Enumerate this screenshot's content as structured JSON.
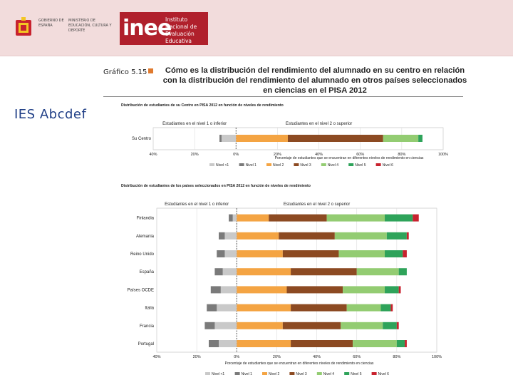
{
  "header": {
    "gov_label": "GOBIERNO DE ESPAÑA",
    "ministry_label": "MINISTERIO DE EDUCACIÓN, CULTURA Y DEPORTE",
    "inee_logo_text": "inee",
    "inee_name": "Instituto Nacional de Evaluación Educativa"
  },
  "side_label": "IES Abcdef",
  "figure": {
    "number": "Gráfico 5.15",
    "title": "Cómo es la distribución del rendimiento del alumnado en su centro en relación con la distribución del rendimiento del alumnado en otros países seleccionados en ciencias en el PISA 2012"
  },
  "colors": {
    "Nivel <1": "#c9c9c9",
    "Nivel 1": "#7a7a7a",
    "Nivel 2": "#f4a443",
    "Nivel 3": "#8c4a22",
    "Nivel 4": "#93cc72",
    "Nivel 5": "#2ea35a",
    "Nivel 6": "#c8222e"
  },
  "chart_data": [
    {
      "type": "bar",
      "stacked": true,
      "diverging": true,
      "title": "Distribución de estudiantes de su Centro en PISA 2012 en función de niveles de rendimiento",
      "left_header": "Estudiantes en el nivel 1 o inferior",
      "right_header": "Estudiantes en el nivel 2 o superior",
      "xlabel": "Porcentaje de estudiantes que se encuentran en diferentes niveles de rendimiento en ciencias",
      "xlim": [
        -40,
        100
      ],
      "ticks": [
        -40,
        -20,
        0,
        20,
        40,
        60,
        80,
        100
      ],
      "tick_labels": [
        "40%",
        "20%",
        "0%",
        "20%",
        "40%",
        "60%",
        "80%",
        "100%"
      ],
      "categories": [
        "Su Centro"
      ],
      "series": [
        {
          "name": "Nivel <1",
          "values": [
            -7
          ]
        },
        {
          "name": "Nivel 1",
          "values": [
            -1
          ]
        },
        {
          "name": "Nivel 2",
          "values": [
            25
          ]
        },
        {
          "name": "Nivel 3",
          "values": [
            46
          ]
        },
        {
          "name": "Nivel 4",
          "values": [
            17
          ]
        },
        {
          "name": "Nivel 5",
          "values": [
            2
          ]
        },
        {
          "name": "Nivel 6",
          "values": [
            0
          ]
        }
      ]
    },
    {
      "type": "bar",
      "stacked": true,
      "diverging": true,
      "title": "Distribución de estudiantes de los países seleccionados en PISA 2012 en función de niveles de rendimiento",
      "left_header": "Estudiantes en el nivel 1 o inferior",
      "right_header": "Estudiantes en el nivel 2 o superior",
      "xlabel": "Porcentaje de estudiantes que se encuentran en diferentes niveles de rendimiento en ciencias",
      "xlim": [
        -40,
        100
      ],
      "ticks": [
        -40,
        -20,
        0,
        20,
        40,
        60,
        80,
        100
      ],
      "tick_labels": [
        "40%",
        "20%",
        "0%",
        "20%",
        "40%",
        "60%",
        "80%",
        "100%"
      ],
      "categories": [
        "Finlandia",
        "Alemania",
        "Reino Unido",
        "España",
        "Países OCDE",
        "Italia",
        "Francia",
        "Portugal"
      ],
      "series": [
        {
          "name": "Nivel <1",
          "values": [
            -2,
            -6,
            -6,
            -7,
            -8,
            -10,
            -11,
            -9
          ]
        },
        {
          "name": "Nivel 1",
          "values": [
            -2,
            -3,
            -4,
            -4,
            -5,
            -5,
            -5,
            -5
          ]
        },
        {
          "name": "Nivel 2",
          "values": [
            16,
            21,
            23,
            27,
            25,
            27,
            23,
            27
          ]
        },
        {
          "name": "Nivel 3",
          "values": [
            29,
            28,
            28,
            33,
            28,
            28,
            29,
            31
          ]
        },
        {
          "name": "Nivel 4",
          "values": [
            29,
            26,
            23,
            21,
            21,
            17,
            21,
            22
          ]
        },
        {
          "name": "Nivel 5",
          "values": [
            14,
            10,
            9,
            4,
            7,
            5,
            7,
            4
          ]
        },
        {
          "name": "Nivel 6",
          "values": [
            3,
            1,
            2,
            0,
            1,
            1,
            1,
            1
          ]
        }
      ]
    }
  ]
}
